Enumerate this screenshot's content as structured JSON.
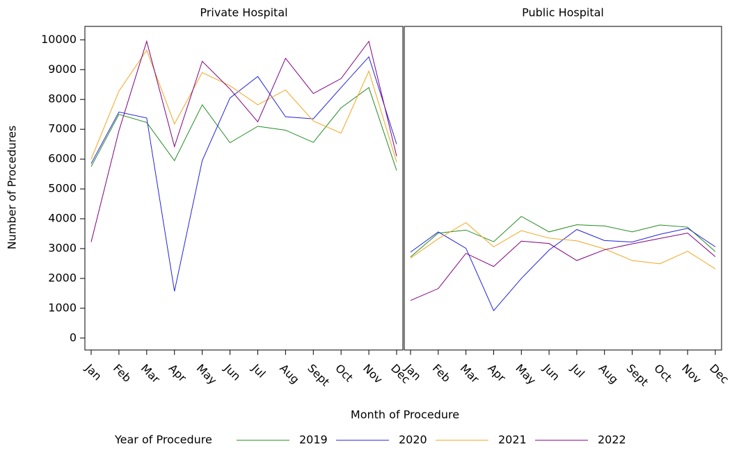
{
  "ylabel": "Number of Procedures",
  "xlabel": "Month of Procedure",
  "legend_title": "Year of Procedure",
  "chart_data": [
    {
      "type": "line",
      "title": "Private Hospital",
      "categories": [
        "Jan",
        "Feb",
        "Mar",
        "Apr",
        "May",
        "Jun",
        "Jul",
        "Aug",
        "Sept",
        "Oct",
        "Nov",
        "Dec"
      ],
      "ylim": [
        -400,
        10450
      ],
      "yticks": [
        0,
        1000,
        2000,
        3000,
        4000,
        5000,
        6000,
        7000,
        8000,
        9000,
        10000
      ],
      "series": [
        {
          "name": "2019",
          "color": "#228b22",
          "values": [
            5750,
            7500,
            7230,
            5950,
            7820,
            6550,
            7100,
            6970,
            6560,
            7720,
            8400,
            5620
          ]
        },
        {
          "name": "2020",
          "color": "#2222dd",
          "values": [
            5850,
            7580,
            7380,
            1570,
            5950,
            8050,
            8770,
            7420,
            7350,
            8400,
            9430,
            6500
          ]
        },
        {
          "name": "2021",
          "color": "#f2a51f",
          "values": [
            6000,
            8280,
            9650,
            7180,
            8900,
            8460,
            7820,
            8320,
            7280,
            6870,
            8950,
            5900
          ]
        },
        {
          "name": "2022",
          "color": "#800080",
          "values": [
            3220,
            6950,
            9950,
            6420,
            9280,
            8350,
            7250,
            9380,
            8200,
            8700,
            9950,
            6100
          ]
        }
      ]
    },
    {
      "type": "line",
      "title": "Public Hospital",
      "categories": [
        "Jan",
        "Feb",
        "Mar",
        "Apr",
        "May",
        "Jun",
        "Jul",
        "Aug",
        "Sept",
        "Oct",
        "Nov",
        "Dec"
      ],
      "ylim": [
        -400,
        10450
      ],
      "series": [
        {
          "name": "2019",
          "color": "#228b22",
          "values": [
            2720,
            3520,
            3620,
            3230,
            4080,
            3560,
            3800,
            3760,
            3560,
            3790,
            3720,
            2900
          ]
        },
        {
          "name": "2020",
          "color": "#2222dd",
          "values": [
            2880,
            3560,
            3010,
            920,
            2000,
            2950,
            3640,
            3270,
            3220,
            3480,
            3680,
            3060
          ]
        },
        {
          "name": "2021",
          "color": "#f2a51f",
          "values": [
            2680,
            3330,
            3870,
            3060,
            3600,
            3350,
            3260,
            2990,
            2600,
            2490,
            2910,
            2320
          ]
        },
        {
          "name": "2022",
          "color": "#800080",
          "values": [
            1260,
            1660,
            2840,
            2400,
            3250,
            3170,
            2600,
            2960,
            3160,
            3340,
            3520,
            2730
          ]
        }
      ]
    }
  ]
}
